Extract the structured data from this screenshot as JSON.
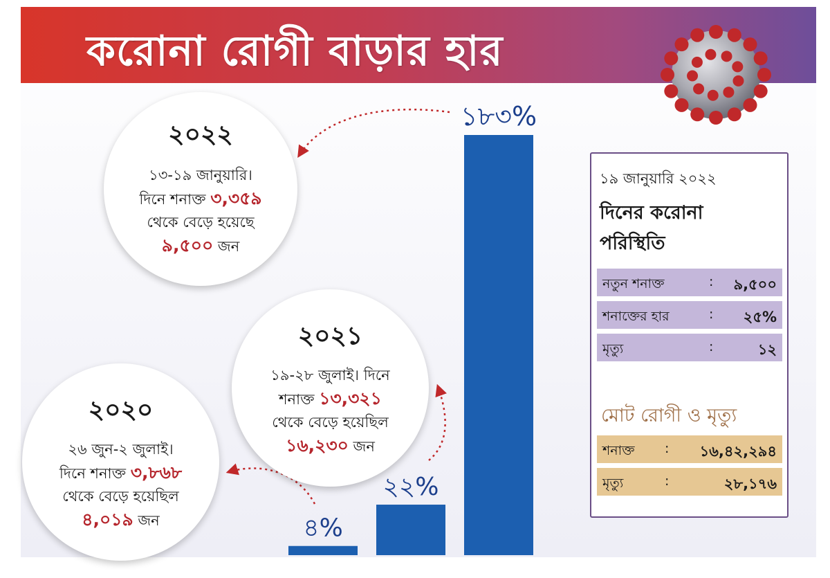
{
  "title": "করোনা রোগী বাড়ার হার",
  "colors": {
    "bar": "#1c5fb0",
    "bar_label": "#1c3f8c",
    "highlight": "#b5252c",
    "arrow": "#c0282a"
  },
  "chart_data": {
    "type": "bar",
    "unit": "%",
    "categories": [
      "2020",
      "2021",
      "2022"
    ],
    "values": [
      4,
      22,
      183
    ],
    "value_labels": [
      "৪%",
      "২২%",
      "১৮৩%"
    ],
    "ylim": [
      0,
      183
    ]
  },
  "circles": {
    "c2022": {
      "year": "২০২২",
      "l1": "১৩-১৯ জানুয়ারি।",
      "l2a": "দিনে শনাক্ত",
      "l2b": "৩,৩৫৯",
      "l3": "থেকে বেড়ে হয়েছে",
      "l4a": "৯,৫০০",
      "l4b": "জন"
    },
    "c2021": {
      "year": "২০২১",
      "l1": "১৯-২৮ জুলাই। দিনে",
      "l2a": "শনাক্ত",
      "l2b": "১৩,৩২১",
      "l3": "থেকে বেড়ে হয়েছিল",
      "l4a": "১৬,২৩০",
      "l4b": "জন"
    },
    "c2020": {
      "year": "২০২০",
      "l1": "২৬ জুন-২ জুলাই।",
      "l2a": "দিনে শনাক্ত",
      "l2b": "৩,৮৬৮",
      "l3": "থেকে বেড়ে হয়েছিল",
      "l4a": "৪,০১৯",
      "l4b": "জন"
    }
  },
  "panel": {
    "date": "১৯ জানুয়ারি ২০২২",
    "heading1": "দিনের করোনা",
    "heading2": "পরিস্থিতি",
    "daily": [
      {
        "label": "নতুন শনাক্ত",
        "colon": ":",
        "value": "৯,৫০০"
      },
      {
        "label": "শনাক্তের হার",
        "colon": ":",
        "value": "২৫%"
      },
      {
        "label": "মৃত্যু",
        "colon": ":",
        "value": "১২"
      }
    ],
    "total_title": "মোট রোগী ও মৃত্যু",
    "totals": [
      {
        "label": "শনাক্ত",
        "colon": ":",
        "value": "১৬,৪২,২৯৪"
      },
      {
        "label": "মৃত্যু",
        "colon": ":",
        "value": "২৮,১৭৬"
      }
    ]
  }
}
